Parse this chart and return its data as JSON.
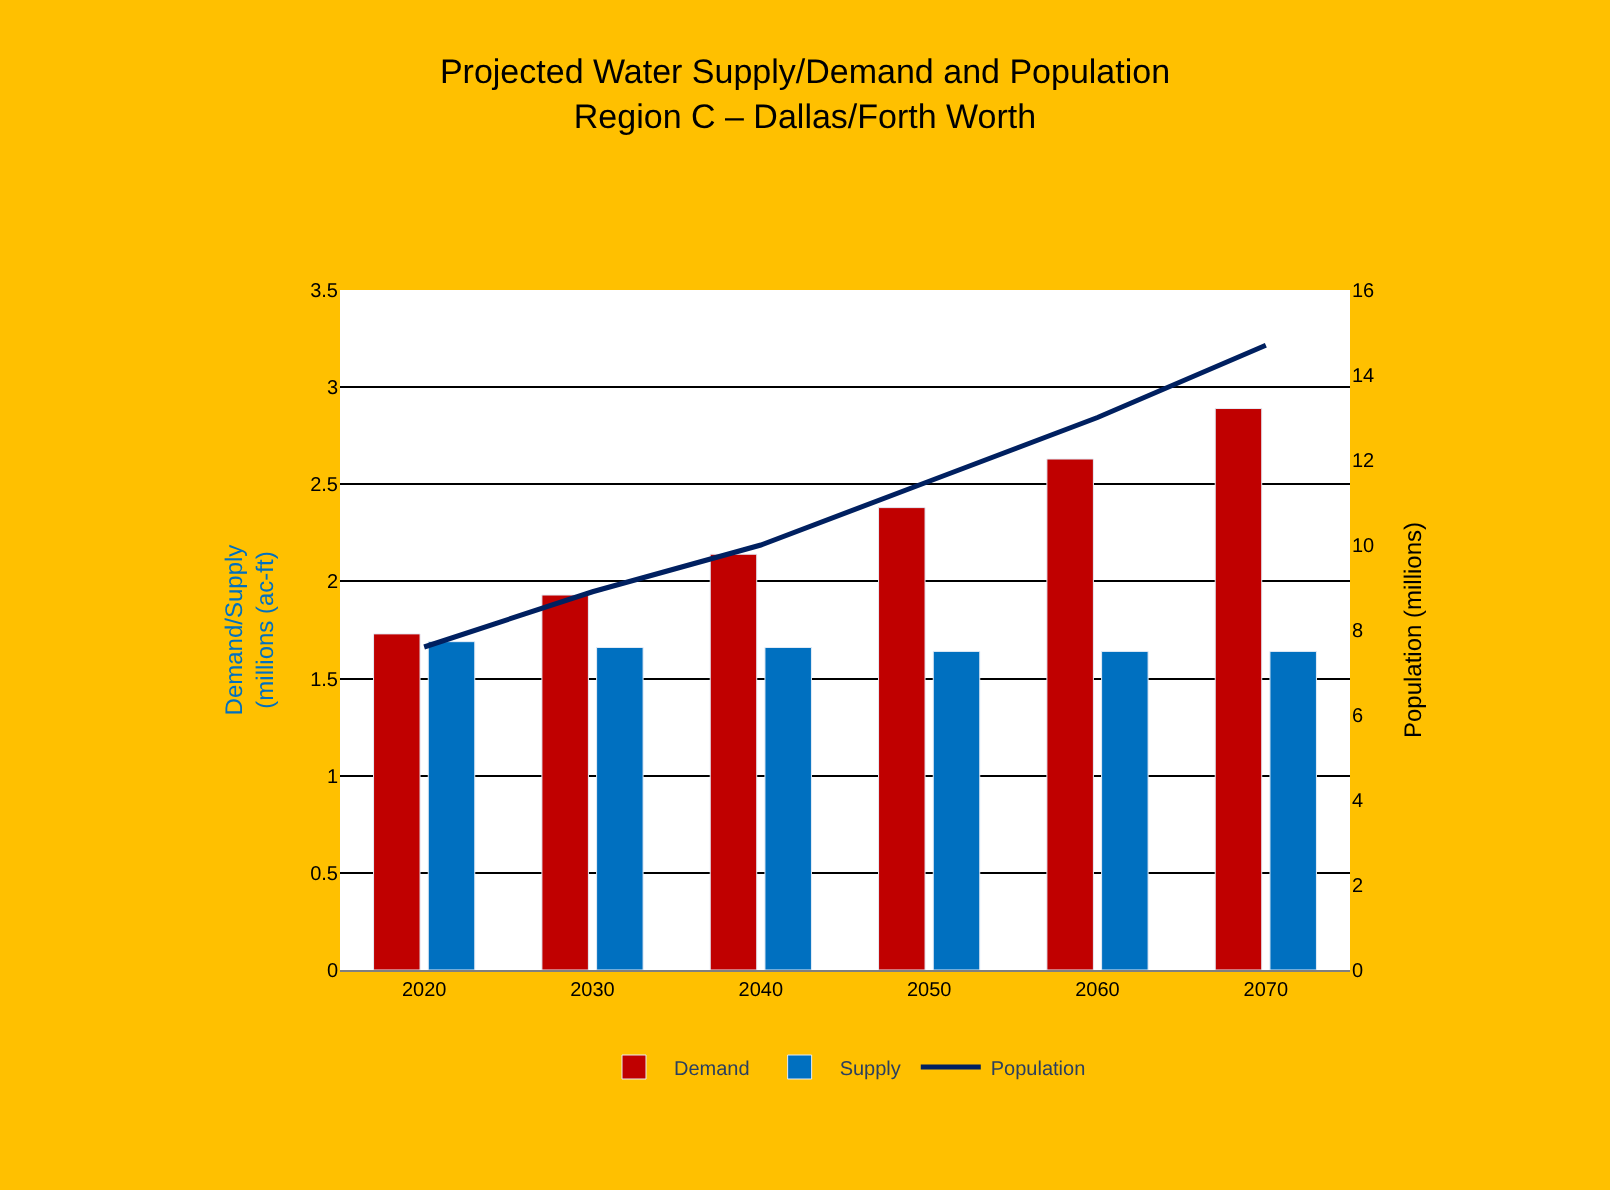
{
  "chart_data": {
    "type": "bar",
    "title": "Projected Water Supply/Demand and Population\nRegion C – Dallas/Forth Worth",
    "categories": [
      "2020",
      "2030",
      "2040",
      "2050",
      "2060",
      "2070"
    ],
    "series": [
      {
        "name": "Demand",
        "color": "#c00000",
        "values": [
          1.73,
          1.93,
          2.14,
          2.38,
          2.63,
          2.89
        ]
      },
      {
        "name": "Supply",
        "color": "#0070c0",
        "values": [
          1.69,
          1.66,
          1.66,
          1.64,
          1.64,
          1.64
        ]
      },
      {
        "name": "Population",
        "type": "line",
        "axis": "y2",
        "color": "#002060",
        "values": [
          7.6,
          8.9,
          10.0,
          11.5,
          13.0,
          14.7
        ]
      }
    ],
    "ylabel": "Demand/Supply\n(millions (ac-ft)",
    "y2label": "Population (millions)",
    "ylim": [
      0,
      3.5
    ],
    "yticks": [
      0,
      0.5,
      1,
      1.5,
      2,
      2.5,
      3,
      3.5
    ],
    "y2lim": [
      0,
      16
    ],
    "y2ticks": [
      0,
      2,
      4,
      6,
      8,
      10,
      12,
      14,
      16
    ],
    "grid": "y",
    "legend": "bottom",
    "marker": "none",
    "line_style": "solid"
  }
}
